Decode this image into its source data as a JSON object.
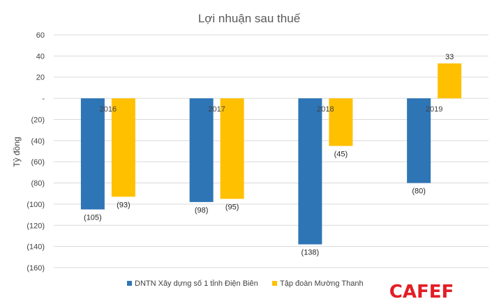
{
  "chart_data": {
    "type": "bar",
    "title": "Lợi nhuận sau thuế",
    "ylabel": "Tỷ đồng",
    "xlabel": "",
    "categories": [
      "2016",
      "2017",
      "2018",
      "2019"
    ],
    "series": [
      {
        "name": "DNTN Xây dựng số 1 tỉnh Điện Biên",
        "values": [
          -105,
          -98,
          -138,
          -80
        ],
        "labels": [
          "(105)",
          "(98)",
          "(138)",
          "(80)"
        ],
        "color": "#2e75b6"
      },
      {
        "name": "Tập đoàn Mường Thanh",
        "values": [
          -93,
          -95,
          -45,
          33
        ],
        "labels": [
          "(93)",
          "(95)",
          "(45)",
          "33"
        ],
        "color": "#ffc000"
      }
    ],
    "yticks": [
      60,
      40,
      20,
      0,
      -20,
      -40,
      -60,
      -80,
      -100,
      -120,
      -140,
      -160
    ],
    "ytick_labels": [
      "60",
      "40",
      "20",
      "-",
      "(20)",
      "(40)",
      "(60)",
      "(80)",
      "(100)",
      "(120)",
      "(140)",
      "(160)"
    ],
    "ylim": [
      -160,
      60
    ],
    "grid": true,
    "legend": "bottom"
  },
  "watermark": {
    "text": "CAFEF",
    "color": "#e31e24"
  }
}
